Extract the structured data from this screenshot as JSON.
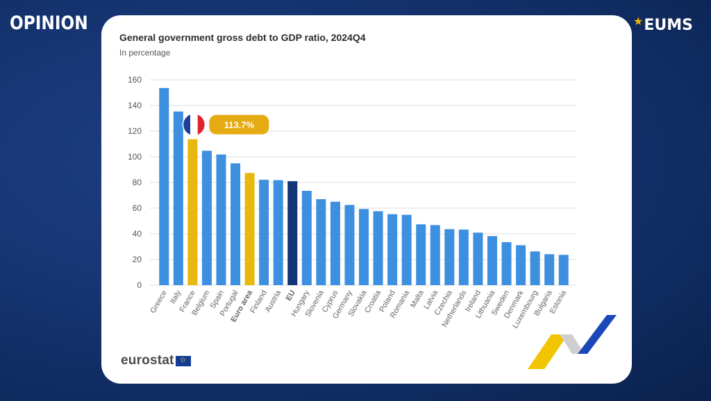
{
  "overlay": {
    "section_label": "OPINION",
    "brand": "EUMS",
    "brand_star": "★"
  },
  "source": {
    "name": "eurostat"
  },
  "highlight": {
    "country": "France",
    "label": "113.7%"
  },
  "colors": {
    "default_bar": "#3d8fe0",
    "highlight_bar": "#e9b80e",
    "eu_bar": "#123578",
    "grid": "#dcdcdc",
    "callout": "#e6ab12"
  },
  "chart_data": {
    "type": "bar",
    "title": "General government gross debt to GDP ratio, 2024Q4",
    "subtitle": "In percentage",
    "xlabel": "",
    "ylabel": "",
    "ylim": [
      0,
      160
    ],
    "yticks": [
      0,
      20,
      40,
      60,
      80,
      100,
      120,
      140,
      160
    ],
    "grid": true,
    "categories": [
      "Greece",
      "Italy",
      "France",
      "Belgium",
      "Spain",
      "Portugal",
      "Euro area",
      "Finland",
      "Austria",
      "EU",
      "Hungary",
      "Slovenia",
      "Cyprus",
      "Germany",
      "Slovakia",
      "Croatia",
      "Poland",
      "Romania",
      "Malta",
      "Latvia",
      "Czechia",
      "Netherlands",
      "Ireland",
      "Lithuania",
      "Sweden",
      "Denmark",
      "Luxembourg",
      "Bulgaria",
      "Estonia"
    ],
    "values": [
      153.6,
      135.3,
      113.7,
      104.7,
      101.8,
      94.9,
      87.4,
      82.1,
      81.8,
      81.0,
      73.5,
      67.0,
      65.0,
      62.5,
      59.3,
      57.6,
      55.3,
      54.8,
      47.4,
      46.8,
      43.6,
      43.3,
      40.9,
      38.2,
      33.5,
      31.1,
      26.3,
      24.1,
      23.6
    ],
    "bar_kinds": [
      "default",
      "default",
      "highlight",
      "default",
      "default",
      "default",
      "highlight",
      "default",
      "default",
      "eu",
      "default",
      "default",
      "default",
      "default",
      "default",
      "default",
      "default",
      "default",
      "default",
      "default",
      "default",
      "default",
      "default",
      "default",
      "default",
      "default",
      "default",
      "default",
      "default"
    ],
    "bold_categories": [
      "Euro area",
      "EU"
    ]
  }
}
